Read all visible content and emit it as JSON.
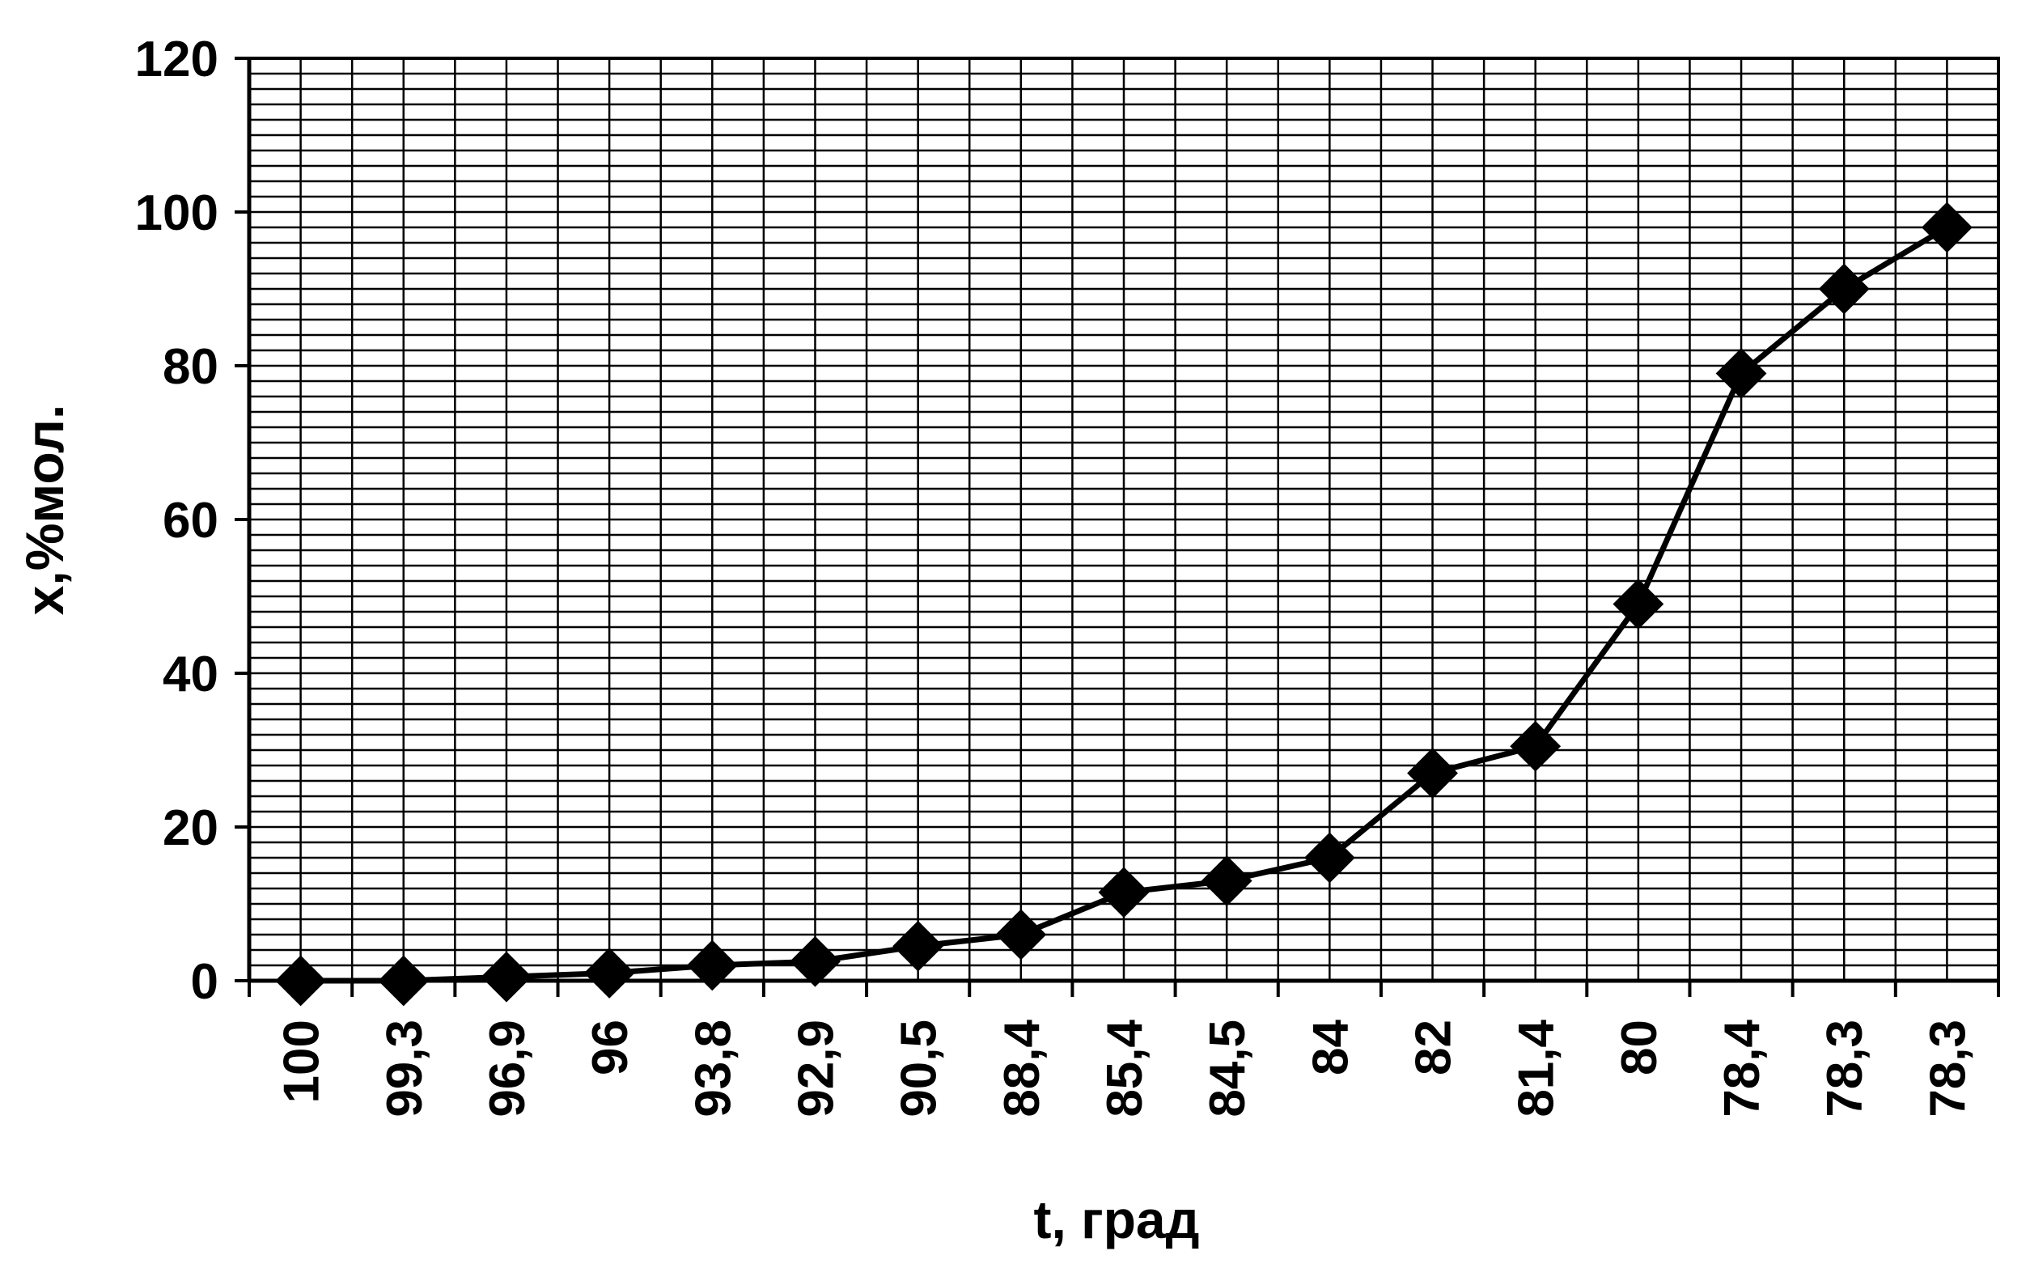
{
  "chart_data": {
    "type": "line",
    "title": "",
    "xlabel": "t, град",
    "ylabel": "x,%мол.",
    "categories": [
      "100",
      "99,3",
      "96,9",
      "96",
      "93,8",
      "92,9",
      "90,5",
      "88,4",
      "85,4",
      "84,5",
      "84",
      "82",
      "81,4",
      "80",
      "78,4",
      "78,3",
      "78,3"
    ],
    "series": [
      {
        "values": [
          0,
          0,
          0.5,
          1,
          2,
          2.5,
          4.5,
          6,
          11.5,
          13,
          16,
          27,
          30.5,
          49,
          79,
          90,
          98
        ]
      }
    ],
    "ylim": [
      0,
      120
    ],
    "yticks": [
      "0",
      "20",
      "40",
      "60",
      "80",
      "100",
      "120"
    ],
    "grid": true,
    "legend": "none",
    "colors": {
      "line": "#000000",
      "marker": "#000000",
      "grid": "#000000",
      "background": "#ffffff"
    },
    "marker_icon": "diamond-marker"
  }
}
